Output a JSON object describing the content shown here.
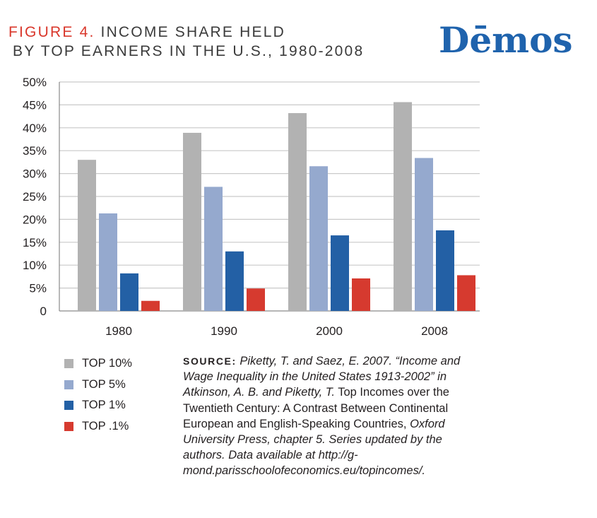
{
  "header": {
    "figure_label": "FIGURE 4.",
    "title_line1": "INCOME SHARE HELD",
    "title_line2": "BY TOP EARNERS IN THE U.S., 1980-2008"
  },
  "logo": {
    "text": "Dēmos",
    "color": "#1f63ad"
  },
  "chart_data": {
    "type": "bar",
    "categories": [
      "1980",
      "1990",
      "2000",
      "2008"
    ],
    "series": [
      {
        "name": "TOP 10%",
        "color": "#b2b2b2",
        "values": [
          33,
          38.9,
          43.2,
          45.6
        ]
      },
      {
        "name": "TOP 5%",
        "color": "#95a9ce",
        "values": [
          21.3,
          27.1,
          31.6,
          33.4
        ]
      },
      {
        "name": "TOP 1%",
        "color": "#2360a5",
        "values": [
          8.2,
          13.0,
          16.5,
          17.6
        ]
      },
      {
        "name": "TOP .1%",
        "color": "#d63a2f",
        "values": [
          2.2,
          4.9,
          7.1,
          7.8
        ]
      }
    ],
    "ylim": [
      0,
      50
    ],
    "yticks": [
      0,
      5,
      10,
      15,
      20,
      25,
      30,
      35,
      40,
      45,
      50
    ],
    "ytick_labels": [
      "0",
      "5%",
      "10%",
      "15%",
      "20%",
      "25%",
      "30%",
      "35%",
      "40%",
      "45%",
      "50%"
    ],
    "grid": true,
    "legend_position": "bottom-left"
  },
  "source": {
    "label": "SOURCE:",
    "part1": "Piketty, T. and Saez, E. 2007. “Income and Wage Inequality in the United States 1913-2002”  in Atkinson, A. B. and Piketty, T.",
    "part2": "Top Incomes over the Twentieth Century: A Contrast Between Continental European and English-Speaking Countries,",
    "part3": "Oxford University Press, chapter 5. Series updated by the authors. Data available at http://g-mond.parisschoolofeconomics.eu/topincomes/."
  }
}
